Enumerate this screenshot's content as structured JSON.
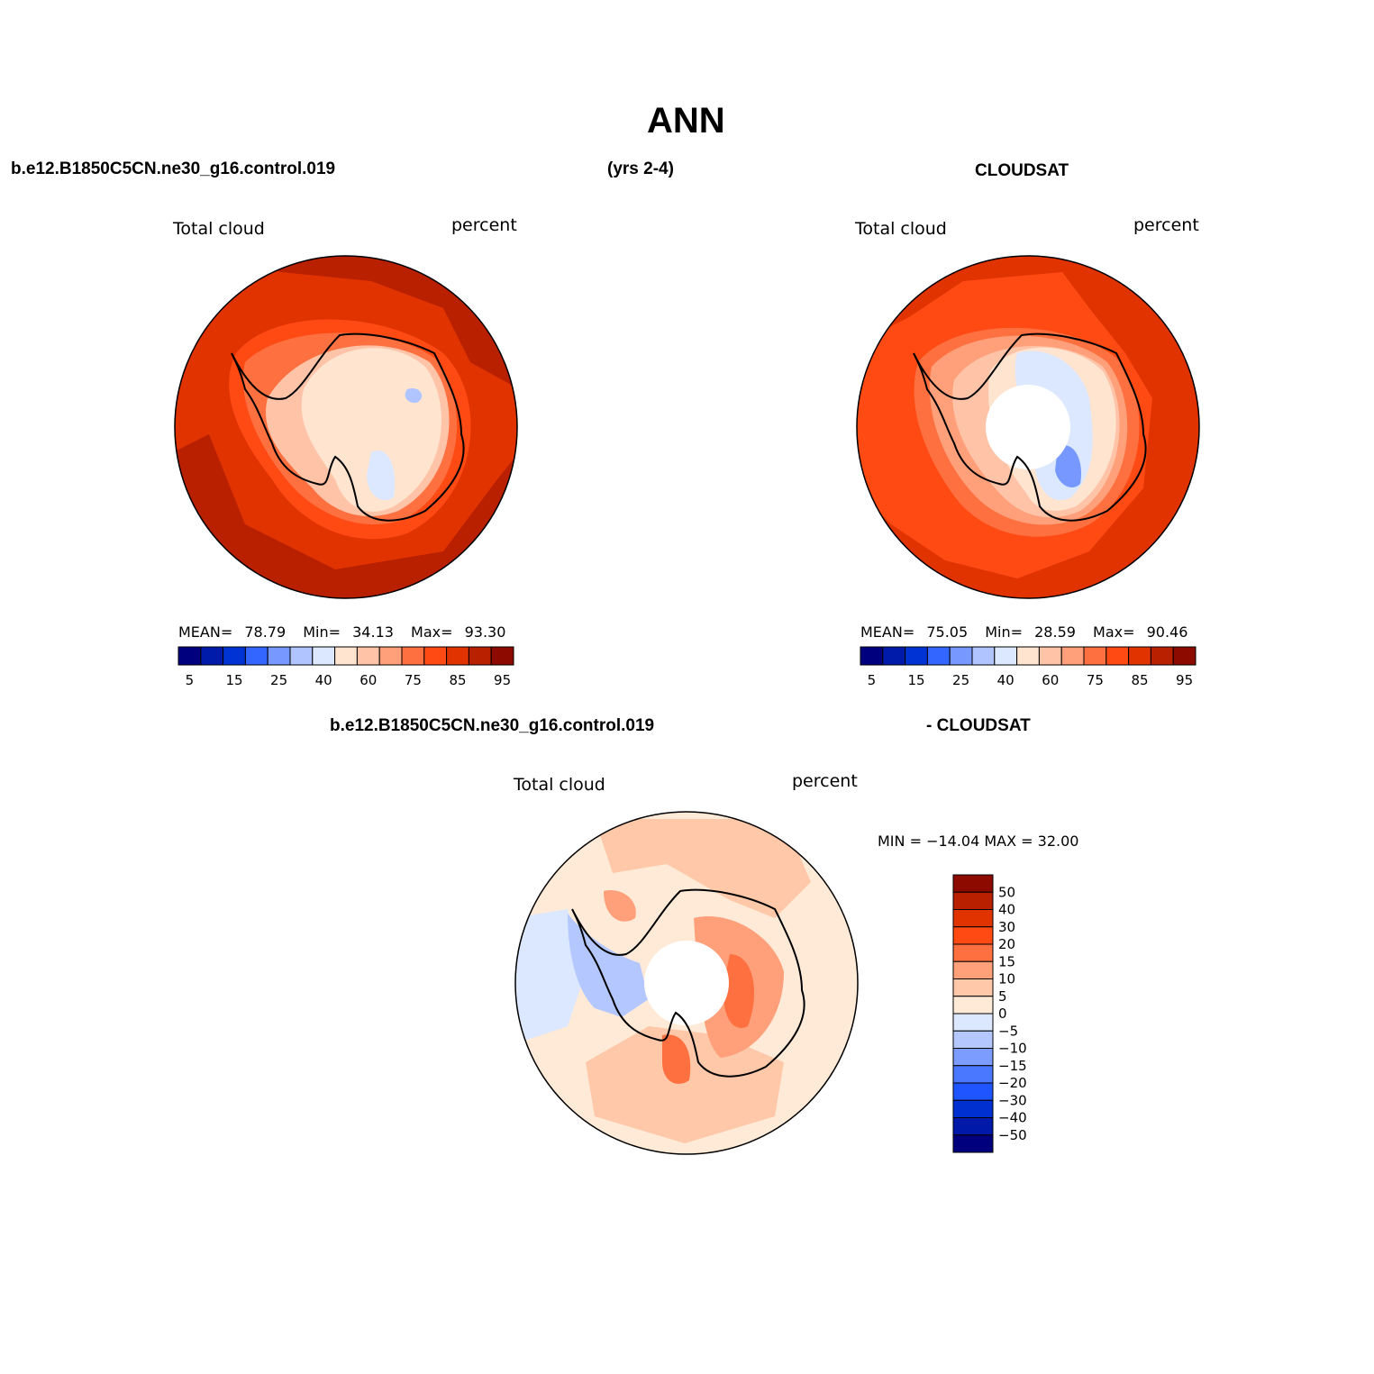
{
  "title": "ANN",
  "top_left_header": "b.e12.B1850C5CN.ne30_g16.control.019",
  "top_center_header": "(yrs 2-4)",
  "top_right_header": "CLOUDSAT",
  "bottom_header_left": "b.e12.B1850C5CN.ne30_g16.control.019",
  "bottom_header_right": "- CLOUDSAT",
  "panels": {
    "model": {
      "variable": "Total cloud",
      "units": "percent",
      "mean_label": "MEAN=",
      "mean": "78.79",
      "min_label": "Min=",
      "min": "34.13",
      "max_label": "Max=",
      "max": "93.30"
    },
    "obs": {
      "variable": "Total cloud",
      "units": "percent",
      "mean_label": "MEAN=",
      "mean": "75.05",
      "min_label": "Min=",
      "min": "28.59",
      "max_label": "Max=",
      "max": "90.46"
    },
    "diff": {
      "variable": "Total cloud",
      "units": "percent",
      "minmax": "MIN = −14.04 MAX =  32.00"
    }
  },
  "colors": {
    "abs_scale": [
      "#00007f",
      "#001aaa",
      "#0033d4",
      "#3366ff",
      "#7799ff",
      "#b0c4ff",
      "#dce8ff",
      "#ffe4d0",
      "#ffc4a8",
      "#ffa07a",
      "#ff7040",
      "#ff4a14",
      "#e03300",
      "#b82000",
      "#8c0a00"
    ],
    "diff_scale": [
      "#00007f",
      "#0019a8",
      "#0030d0",
      "#1e55ff",
      "#4a78ff",
      "#7c9cff",
      "#b4c8ff",
      "#dce8ff",
      "#ffead8",
      "#ffc8a8",
      "#ffa07a",
      "#ff7040",
      "#ff4a14",
      "#e03300",
      "#b82000",
      "#8c0a00"
    ],
    "land_outline": "#000000"
  },
  "chart_data": [
    {
      "type": "heatmap",
      "projection": "south-polar-stereographic",
      "title": "b.e12.B1850C5CN.ne30_g16.control.019 (yrs 2-4)",
      "variable": "Total cloud",
      "units": "percent",
      "mean": 78.79,
      "min": 34.13,
      "max": 93.3,
      "colorbar_ticks": [
        "5",
        "15",
        "25",
        "40",
        "60",
        "75",
        "85",
        "95"
      ],
      "levels": [
        5,
        10,
        15,
        20,
        25,
        30,
        40,
        50,
        60,
        70,
        75,
        80,
        85,
        90,
        95
      ]
    },
    {
      "type": "heatmap",
      "projection": "south-polar-stereographic",
      "title": "CLOUDSAT",
      "variable": "Total cloud",
      "units": "percent",
      "mean": 75.05,
      "min": 28.59,
      "max": 90.46,
      "colorbar_ticks": [
        "5",
        "15",
        "25",
        "40",
        "60",
        "75",
        "85",
        "95"
      ],
      "levels": [
        5,
        10,
        15,
        20,
        25,
        30,
        40,
        50,
        60,
        70,
        75,
        80,
        85,
        90,
        95
      ]
    },
    {
      "type": "heatmap",
      "projection": "south-polar-stereographic",
      "title": "b.e12.B1850C5CN.ne30_g16.control.019 - CLOUDSAT",
      "variable": "Total cloud",
      "units": "percent",
      "min": -14.04,
      "max": 32.0,
      "colorbar_ticks": [
        "50",
        "40",
        "30",
        "20",
        "15",
        "10",
        "5",
        "0",
        "−5",
        "−10",
        "−15",
        "−20",
        "−30",
        "−40",
        "−50"
      ],
      "levels": [
        -50,
        -40,
        -30,
        -20,
        -15,
        -10,
        -5,
        0,
        5,
        10,
        15,
        20,
        30,
        40,
        50
      ]
    }
  ]
}
